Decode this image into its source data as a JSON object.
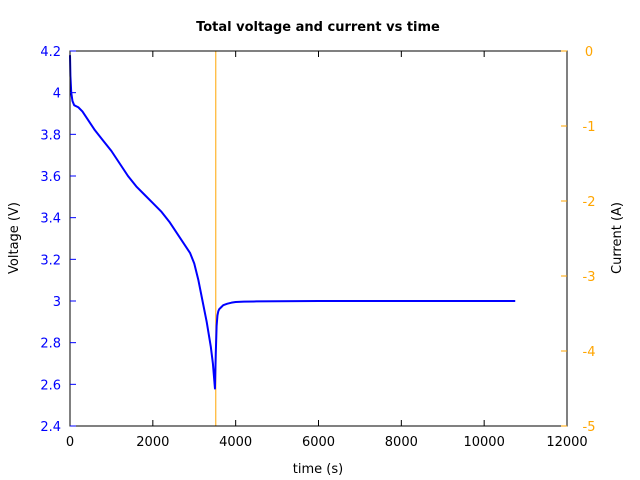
{
  "chart_data": {
    "type": "line",
    "title": "Total voltage and current vs time",
    "xlabel": "time (s)",
    "ylabel": "Voltage (V)",
    "y2label": "Current (A)",
    "xlim": [
      0,
      12000
    ],
    "ylim": [
      2.4,
      4.2
    ],
    "y2lim": [
      -5,
      0
    ],
    "xticks": [
      "0",
      "2000",
      "4000",
      "6000",
      "8000",
      "10000",
      "12000"
    ],
    "yticks": [
      "2.4",
      "2.6",
      "2.8",
      "3",
      "3.2",
      "3.4",
      "3.6",
      "3.8",
      "4",
      "4.2"
    ],
    "y2ticks": [
      "-5",
      "-4",
      "-3",
      "-2",
      "-1",
      "0"
    ],
    "grid": false,
    "colors": {
      "voltage": "#0000ff",
      "current": "#ffa500",
      "left_axis": "#0000ff",
      "right_axis": "#ffa500"
    },
    "series": [
      {
        "axis": "left",
        "x": [
          0,
          10,
          30,
          60,
          100,
          150,
          200,
          300,
          400,
          500,
          600,
          700,
          800,
          1000,
          1200,
          1400,
          1600,
          1800,
          2000,
          2200,
          2400,
          2600,
          2800,
          2900,
          3000,
          3100,
          3200,
          3300,
          3400,
          3450,
          3500,
          3520,
          3540,
          3560,
          3580,
          3600,
          3650,
          3700,
          3800,
          3900,
          4000,
          4200,
          4500,
          5000,
          6000,
          7000,
          8000,
          9000,
          10000,
          10750
        ],
        "y": [
          4.18,
          4.08,
          4.0,
          3.96,
          3.94,
          3.935,
          3.93,
          3.91,
          3.88,
          3.85,
          3.82,
          3.795,
          3.77,
          3.72,
          3.66,
          3.6,
          3.55,
          3.51,
          3.47,
          3.43,
          3.38,
          3.32,
          3.26,
          3.23,
          3.18,
          3.1,
          3.0,
          2.9,
          2.78,
          2.7,
          2.58,
          2.75,
          2.88,
          2.93,
          2.95,
          2.96,
          2.97,
          2.98,
          2.987,
          2.992,
          2.995,
          2.997,
          2.998,
          2.999,
          3.0,
          3.0,
          3.0,
          3.0,
          3.0,
          3.0
        ]
      },
      {
        "axis": "right",
        "x": [
          3520,
          3520
        ],
        "y": [
          0,
          -5
        ]
      }
    ]
  }
}
